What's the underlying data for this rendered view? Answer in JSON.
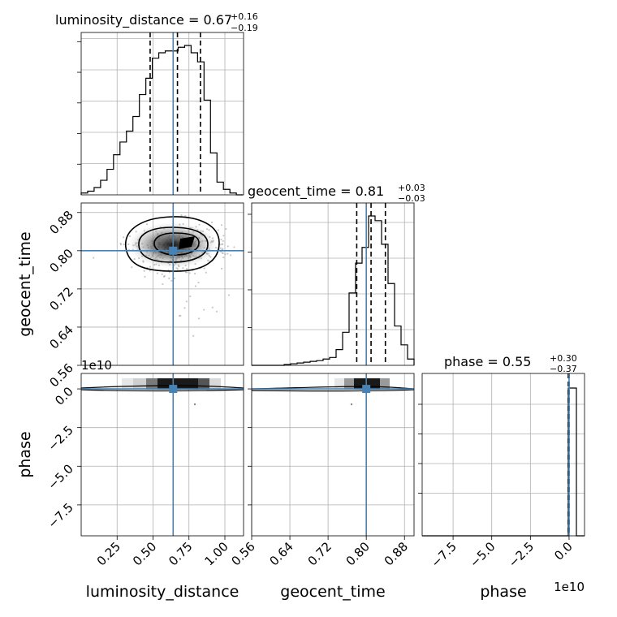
{
  "chart_data": {
    "type": "corner",
    "parameters": [
      "luminosity_distance",
      "geocent_time",
      "phase"
    ],
    "titles": {
      "luminosity_distance": {
        "label": "luminosity_distance = 0.67",
        "upper": "+0.16",
        "lower": "−0.19"
      },
      "geocent_time": {
        "label": "geocent_time = 0.81",
        "upper": "+0.03",
        "lower": "−0.03"
      },
      "phase": {
        "label": "phase = 0.55",
        "upper": "+0.30",
        "lower": "−0.37"
      }
    },
    "axis_labels": {
      "luminosity_distance": "luminosity_distance",
      "geocent_time": "geocent_time",
      "phase": "phase"
    },
    "ranges": {
      "luminosity_distance": [
        0.0,
        1.13
      ],
      "geocent_time": [
        0.56,
        0.9
      ],
      "phase": [
        -95000000000.0,
        10000000000.0
      ]
    },
    "ticks": {
      "luminosity_distance": {
        "values": [
          0.25,
          0.5,
          0.75,
          1.0
        ],
        "labels": [
          "0.25",
          "0.50",
          "0.75",
          "1.00"
        ]
      },
      "geocent_time": {
        "values": [
          0.56,
          0.64,
          0.72,
          0.8,
          0.88
        ],
        "labels": [
          "0.56",
          "0.64",
          "0.72",
          "0.80",
          "0.88"
        ]
      },
      "phase": {
        "values": [
          -75000000000.0,
          -50000000000.0,
          -25000000000.0,
          0.0
        ],
        "labels": [
          "−7.5",
          "−5.0",
          "−2.5",
          "0.0"
        ]
      }
    },
    "offset_text": "1e10",
    "truths": {
      "luminosity_distance": 0.64,
      "geocent_time": 0.8,
      "phase": 0.0
    },
    "quantiles": {
      "luminosity_distance": [
        0.48,
        0.67,
        0.83
      ],
      "geocent_time": [
        0.78,
        0.81,
        0.84
      ],
      "phase": [
        0.18,
        0.55,
        0.85
      ]
    },
    "hist_luminosity_distance": {
      "edges": [
        0.0,
        0.045,
        0.09,
        0.135,
        0.18,
        0.225,
        0.27,
        0.315,
        0.36,
        0.405,
        0.45,
        0.495,
        0.54,
        0.585,
        0.63,
        0.675,
        0.72,
        0.765,
        0.81,
        0.855,
        0.9,
        0.945,
        0.99,
        1.035,
        1.08,
        1.125
      ],
      "counts": [
        1,
        2,
        4,
        8,
        14,
        22,
        29,
        35,
        43,
        55,
        64,
        75,
        78,
        79,
        79,
        81,
        82,
        78,
        73,
        52,
        23,
        7,
        3,
        1,
        0
      ]
    },
    "hist_geocent_time": {
      "edges": [
        0.56,
        0.5736,
        0.5872,
        0.6008,
        0.6144,
        0.628,
        0.6416,
        0.6552,
        0.6688,
        0.6824,
        0.696,
        0.7096,
        0.7232,
        0.7368,
        0.7504,
        0.764,
        0.7776,
        0.7912,
        0.8048,
        0.8184,
        0.832,
        0.8456,
        0.8592,
        0.8728,
        0.8864,
        0.9
      ],
      "counts": [
        0,
        0,
        0,
        0,
        0,
        0.5,
        1,
        1.5,
        2,
        2.5,
        3,
        4,
        5,
        10,
        21,
        46,
        65,
        75,
        95,
        92,
        77,
        52,
        25,
        13,
        4
      ]
    },
    "grid": true,
    "legend": "none"
  }
}
